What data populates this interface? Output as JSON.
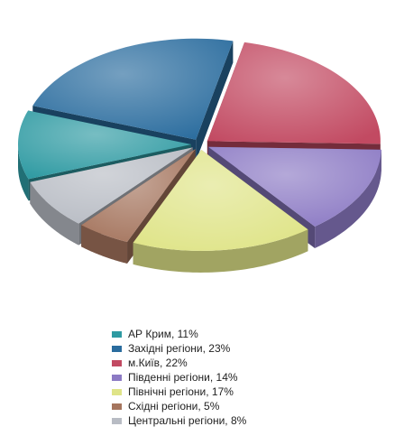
{
  "chart_data": {
    "type": "pie",
    "style": "3d-exploded",
    "legend_position": "bottom",
    "slices": [
      {
        "label": "АР Крим, 11%",
        "value": 11,
        "color": "#2e9aa2"
      },
      {
        "label": "Західні регіони, 23%",
        "value": 23,
        "color": "#2a6c9e"
      },
      {
        "label": "м.Київ, 22%",
        "value": 22,
        "color": "#c24a62"
      },
      {
        "label": "Південні регіони, 14%",
        "value": 14,
        "color": "#8c7ac4"
      },
      {
        "label": "Північні регіони, 17%",
        "value": 17,
        "color": "#dfe488"
      },
      {
        "label": "Східні регіони, 5%",
        "value": 5,
        "color": "#a5755e"
      },
      {
        "label": "Центральні регіони, 8%",
        "value": 8,
        "color": "#b8bcc4"
      }
    ]
  }
}
